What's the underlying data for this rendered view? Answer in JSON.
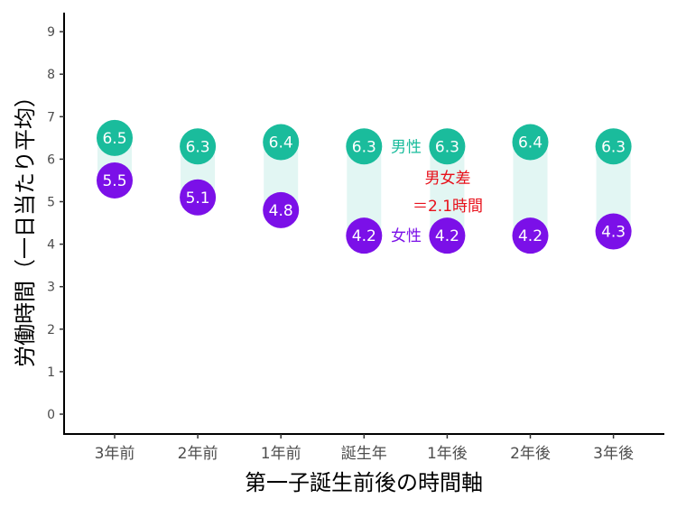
{
  "chart_data": {
    "type": "dumbbell",
    "categories": [
      "3年前",
      "2年前",
      "1年前",
      "誕生年",
      "1年後",
      "2年後",
      "3年後"
    ],
    "series": [
      {
        "name": "男性",
        "values": [
          6.5,
          6.3,
          6.4,
          6.3,
          6.3,
          6.4,
          6.3
        ],
        "labels": [
          "6.5",
          "6.3",
          "6.4",
          "6.3",
          "6.3",
          "6.4",
          "6.3"
        ],
        "color": "#1abc9c"
      },
      {
        "name": "女性",
        "values": [
          5.5,
          5.1,
          4.8,
          4.2,
          4.2,
          4.2,
          4.3
        ],
        "labels": [
          "5.5",
          "5.1",
          "4.8",
          "4.2",
          "4.2",
          "4.2",
          "4.3"
        ],
        "color": "#7b10e8"
      }
    ],
    "range_color": "#e2f6f3",
    "xlabel": "第一子誕生前後の時間軸",
    "ylabel": "労働時間（一日当たり平均）",
    "ylim": [
      0,
      9
    ],
    "yticks": [
      "0",
      "1",
      "2",
      "3",
      "4",
      "5",
      "6",
      "7",
      "8",
      "9"
    ],
    "grid": false,
    "annotations": {
      "male_label": {
        "text": "男性",
        "color": "#1abc9c"
      },
      "female_label": {
        "text": "女性",
        "color": "#7b10e8"
      },
      "gap_line1": {
        "text": "男女差",
        "color": "#e8111b"
      },
      "gap_line2": {
        "text": "＝2.1時間",
        "color": "#e8111b"
      }
    }
  }
}
